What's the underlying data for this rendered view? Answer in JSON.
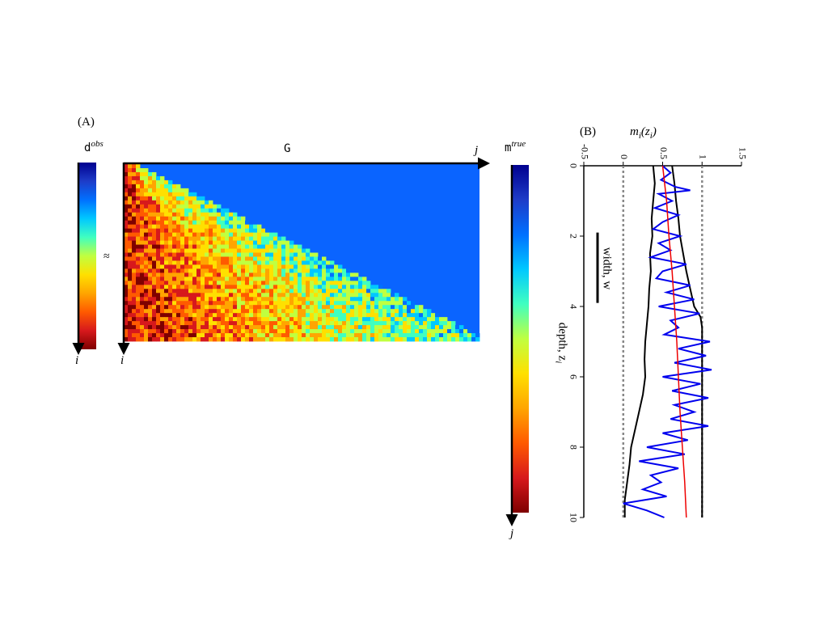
{
  "panel_a": {
    "label": "(A)",
    "dobs_symbol": "d",
    "dobs_superscript": "obs",
    "approx": "≈",
    "g_label": "G",
    "mtrue_symbol": "m",
    "mtrue_superscript": "true",
    "index_i": "i",
    "index_j": "j",
    "colormap": [
      "#7f0000",
      "#d7191c",
      "#ff5a00",
      "#ffa500",
      "#ffe000",
      "#c0ff40",
      "#40ffc0",
      "#00c8ff",
      "#0070ff",
      "#1e3cc8",
      "#00008f"
    ]
  },
  "panel_b": {
    "label": "(B)",
    "x_axis_label_main": "m",
    "x_axis_label_sub": "i",
    "x_axis_label_arg": "(z",
    "x_axis_label_arg_sub": "i",
    "x_axis_label_close": ")",
    "y_axis_label_main": "depth, z",
    "y_axis_label_sub": "i",
    "scale_bar_label": "width, w",
    "colors": {
      "true": "#0000ee",
      "estimate": "#ee0000",
      "bounds": "#000000",
      "reference": "#888888"
    }
  },
  "chart_data": [
    {
      "type": "heatmap",
      "title": "",
      "description_series": [
        "dobs",
        "G",
        "mtrue"
      ],
      "g_matrix_shape": "lower triangular, rows i, columns j, values decreasing away from first column",
      "values_range": [
        0,
        1
      ]
    },
    {
      "type": "line",
      "title": "",
      "xlabel": "m_i(z_i)",
      "ylabel": "depth, z_i",
      "xlim": [
        -0.5,
        1.5
      ],
      "ylim": [
        0,
        10
      ],
      "x_ticks": [
        "-0.5",
        "0",
        "0.5",
        "1",
        "1.5"
      ],
      "y_ticks": [
        "0",
        "2",
        "4",
        "6",
        "8",
        "10"
      ],
      "series": [
        {
          "key": "true_model",
          "z": [
            0.0,
            0.2,
            0.4,
            0.6,
            0.7,
            0.8,
            1.0,
            1.2,
            1.4,
            1.6,
            1.8,
            2.0,
            2.2,
            2.4,
            2.6,
            2.8,
            3.0,
            3.2,
            3.4,
            3.6,
            3.8,
            4.0,
            4.2,
            4.4,
            4.6,
            4.8,
            5.0,
            5.2,
            5.4,
            5.6,
            5.8,
            6.0,
            6.2,
            6.4,
            6.6,
            6.8,
            7.0,
            7.2,
            7.4,
            7.6,
            7.8,
            8.0,
            8.2,
            8.4,
            8.6,
            8.8,
            9.0,
            9.2,
            9.4,
            9.6,
            9.8,
            10.0
          ],
          "m": [
            0.5,
            0.6,
            0.48,
            0.66,
            0.85,
            0.45,
            0.62,
            0.4,
            0.7,
            0.5,
            0.38,
            0.72,
            0.45,
            0.6,
            0.35,
            0.8,
            0.5,
            0.42,
            0.85,
            0.55,
            0.9,
            0.45,
            0.97,
            0.6,
            0.7,
            0.52,
            1.1,
            0.7,
            1.05,
            0.65,
            1.12,
            0.5,
            0.98,
            0.62,
            1.08,
            0.65,
            0.9,
            0.6,
            1.08,
            0.5,
            0.82,
            0.3,
            0.78,
            0.2,
            0.7,
            0.35,
            0.48,
            0.25,
            0.55,
            0.0,
            0.3,
            0.52
          ]
        },
        {
          "key": "estimate",
          "z": [
            0.0,
            1.0,
            2.0,
            3.0,
            4.0,
            5.0,
            6.0,
            7.0,
            8.0,
            9.0,
            10.0
          ],
          "m": [
            0.5,
            0.55,
            0.58,
            0.62,
            0.65,
            0.68,
            0.7,
            0.72,
            0.75,
            0.78,
            0.8
          ]
        },
        {
          "key": "lower_bound",
          "z": [
            0.0,
            0.5,
            1.0,
            1.5,
            2.0,
            2.5,
            3.0,
            3.5,
            4.0,
            4.5,
            5.0,
            5.5,
            6.0,
            6.5,
            7.0,
            7.5,
            8.0,
            8.5,
            9.0,
            9.5,
            10.0
          ],
          "m": [
            0.38,
            0.4,
            0.38,
            0.36,
            0.37,
            0.34,
            0.35,
            0.33,
            0.32,
            0.3,
            0.28,
            0.27,
            0.28,
            0.25,
            0.2,
            0.15,
            0.1,
            0.08,
            0.05,
            0.02,
            0.02
          ]
        },
        {
          "key": "upper_bound",
          "z": [
            0.0,
            0.5,
            1.0,
            1.5,
            2.0,
            2.5,
            3.0,
            3.5,
            4.0,
            4.3,
            4.6,
            5.0,
            5.5,
            6.0,
            6.5,
            7.0,
            7.5,
            8.0,
            8.5,
            9.0,
            9.5,
            10.0
          ],
          "m": [
            0.62,
            0.65,
            0.67,
            0.7,
            0.72,
            0.76,
            0.8,
            0.85,
            0.9,
            0.98,
            1.0,
            1.0,
            1.0,
            1.0,
            1.0,
            1.0,
            1.0,
            1.0,
            1.0,
            1.0,
            1.0,
            1.0
          ]
        },
        {
          "key": "ref_zero",
          "z": [
            0,
            10
          ],
          "m": [
            0,
            0
          ]
        },
        {
          "key": "ref_one",
          "z": [
            0,
            10
          ],
          "m": [
            1,
            1
          ]
        }
      ],
      "scale_bar": {
        "z_start": 1.9,
        "z_end": 3.9
      }
    }
  ]
}
